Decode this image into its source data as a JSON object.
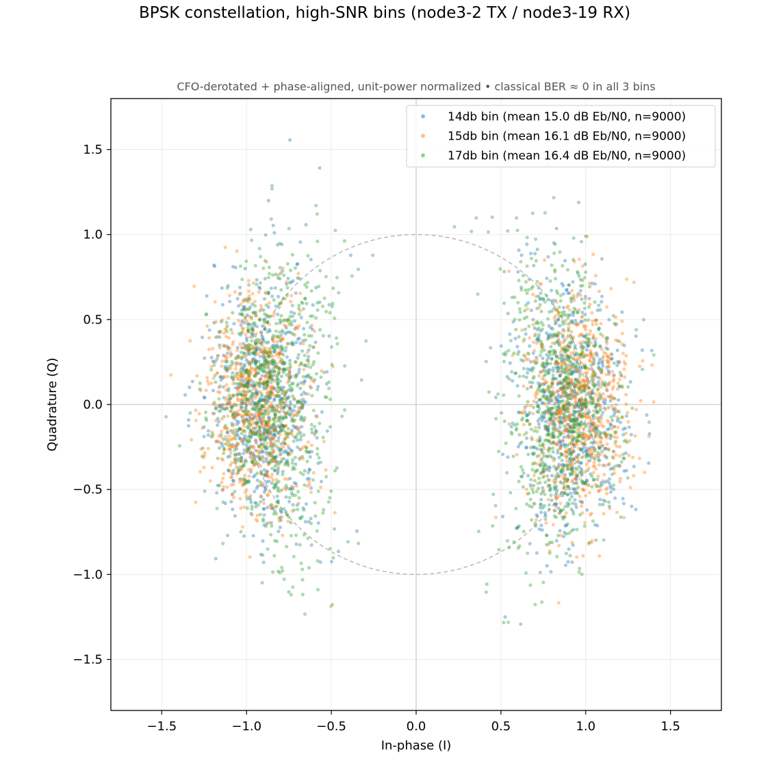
{
  "chart_data": {
    "type": "scatter",
    "title": "BPSK constellation, high-SNR bins (node3-2 TX / node3-19 RX)",
    "subtitle": "CFO-derotated + phase-aligned, unit-power normalized  •  classical BER ≈ 0 in all 3 bins",
    "xlabel": "In-phase (I)",
    "ylabel": "Quadrature (Q)",
    "xlim": [
      -1.8,
      1.8
    ],
    "ylim": [
      -1.8,
      1.8
    ],
    "xticks": [
      -1.5,
      -1.0,
      -0.5,
      0.0,
      0.5,
      1.0,
      1.5
    ],
    "yticks": [
      -1.5,
      -1.0,
      -0.5,
      0.0,
      0.5,
      1.0,
      1.5
    ],
    "xtick_labels": [
      "−1.5",
      "−1.0",
      "−0.5",
      "0.0",
      "0.5",
      "1.0",
      "1.5"
    ],
    "ytick_labels": [
      "−1.5",
      "−1.0",
      "−0.5",
      "0.0",
      "0.5",
      "1.0",
      "1.5"
    ],
    "grid": true,
    "legend_position": "upper right",
    "reference_circle": {
      "radius": 1.0,
      "style": "dashed",
      "color": "#bbbbbb"
    },
    "series": [
      {
        "name": "14db bin (mean 15.0 dB Eb/N0, n=9000)",
        "color": "#1f77b4",
        "n": 9000,
        "clusters": [
          {
            "center": [
              -0.92,
              0.0
            ],
            "spread_i": 0.16,
            "spread_q": 0.38,
            "tilt": 0.35
          },
          {
            "center": [
              0.92,
              0.0
            ],
            "spread_i": 0.16,
            "spread_q": 0.38,
            "tilt": -0.35
          }
        ]
      },
      {
        "name": "15db bin (mean 16.1 dB Eb/N0, n=9000)",
        "color": "#ff7f0e",
        "n": 9000,
        "clusters": [
          {
            "center": [
              -0.95,
              0.0
            ],
            "spread_i": 0.15,
            "spread_q": 0.33,
            "tilt": 0.25
          },
          {
            "center": [
              0.97,
              0.0
            ],
            "spread_i": 0.15,
            "spread_q": 0.33,
            "tilt": -0.25
          }
        ]
      },
      {
        "name": "17db bin (mean 16.4 dB Eb/N0, n=9000)",
        "color": "#2ca02c",
        "n": 9000,
        "clusters": [
          {
            "center": [
              -0.88,
              0.0
            ],
            "spread_i": 0.17,
            "spread_q": 0.44,
            "tilt": 0.45
          },
          {
            "center": [
              0.88,
              0.0
            ],
            "spread_i": 0.17,
            "spread_q": 0.44,
            "tilt": -0.45
          }
        ]
      }
    ]
  }
}
